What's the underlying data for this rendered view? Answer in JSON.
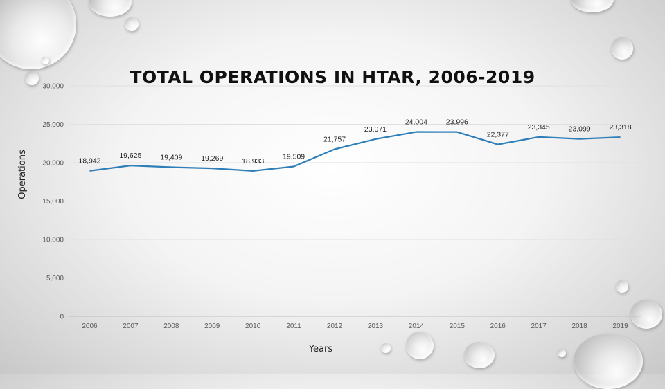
{
  "chart_data": {
    "type": "line",
    "title": "TOTAL OPERATIONS IN HTAR, 2006-2019",
    "xlabel": "Years",
    "ylabel": "Operations",
    "categories": [
      "2006",
      "2007",
      "2008",
      "2009",
      "2010",
      "2011",
      "2012",
      "2013",
      "2014",
      "2015",
      "2016",
      "2017",
      "2018",
      "2019"
    ],
    "series": [
      {
        "values": [
          18942,
          19625,
          19409,
          19269,
          18933,
          19509,
          21757,
          23071,
          24004,
          23996,
          22377,
          23345,
          23099,
          23318
        ]
      }
    ],
    "data_labels": [
      "18,942",
      "19,625",
      "19,409",
      "19,269",
      "18,933",
      "19,509",
      "21,757",
      "23,071",
      "24,004",
      "23,996",
      "22,377",
      "23,345",
      "23,099",
      "23,318"
    ],
    "yticks": [
      "0",
      "5,000",
      "10,000",
      "15,000",
      "20,000",
      "25,000",
      "30,000"
    ],
    "ylim": [
      0,
      30000
    ],
    "grid": true,
    "line_color": "#2e7fb8"
  }
}
